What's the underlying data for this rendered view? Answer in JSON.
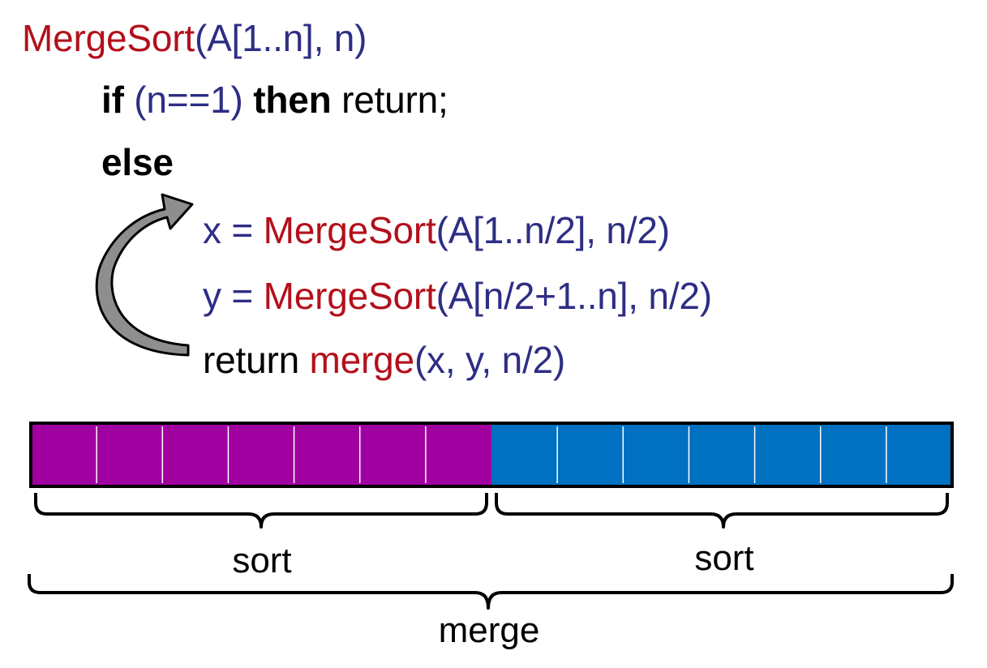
{
  "colors": {
    "function": "#b3101b",
    "args": "#2e2e85",
    "keyword": "#000000",
    "plain": "#000000",
    "left_half": "#a100a1",
    "right_half": "#0070c0",
    "arrow_fill": "#8e8e8e",
    "outline": "#000000"
  },
  "code": {
    "signature": {
      "fn": "MergeSort",
      "args": "(A[1..n], n)"
    },
    "if_line": {
      "kw_if": "if",
      "cond": " (n==1) ",
      "kw_then": "then",
      "rest": " return;"
    },
    "else_line": {
      "kw_else": "else"
    },
    "x_line": {
      "lhs": "x = ",
      "fn": "MergeSort",
      "args": "(A[1..n/2], n/2)"
    },
    "y_line": {
      "lhs": "y = ",
      "fn": "MergeSort",
      "args": "(A[n/2+1..n], n/2)"
    },
    "return_line": {
      "kw": "return ",
      "fn": "merge",
      "args": "(x, y, n/2)"
    }
  },
  "array": {
    "left_cells": 7,
    "right_cells": 7
  },
  "labels": {
    "left_sort": "sort",
    "right_sort": "sort",
    "merge": "merge"
  },
  "icons": {
    "recursion_arrow": "curved-arrow-icon"
  }
}
